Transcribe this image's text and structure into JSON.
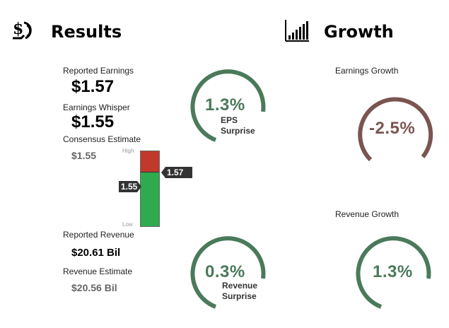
{
  "results": {
    "icon": "money-hand-icon",
    "title": "Results",
    "reported_earnings_label": "Reported Earnings",
    "reported_earnings_value": "$1.57",
    "earnings_whisper_label": "Earnings Whisper",
    "earnings_whisper_value": "$1.55",
    "consensus_label": "Consensus Estimate",
    "consensus_value": "$1.55",
    "range_bar": {
      "high_label": "High",
      "low_label": "Low",
      "actual_tag": "1.57",
      "whisper_tag": "1.55",
      "actual_color": "#c0392b",
      "base_color": "#2eaa4f"
    },
    "eps_gauge": {
      "value": "1.3%",
      "line1": "EPS",
      "line2": "Surprise",
      "color": "#4a7a5a"
    },
    "reported_revenue_label": "Reported Revenue",
    "reported_revenue_value": "$20.61 Bil",
    "revenue_estimate_label": "Revenue Estimate",
    "revenue_estimate_value": "$20.56 Bil",
    "revenue_gauge": {
      "value": "0.3%",
      "line1": "Revenue",
      "line2": "Surprise",
      "color": "#4a7a5a"
    }
  },
  "growth": {
    "icon": "bar-chart-icon",
    "title": "Growth",
    "earnings_growth_label": "Earnings Growth",
    "earnings_growth_value": "-2.5%",
    "earnings_growth_color": "#7a5550",
    "revenue_growth_label": "Revenue Growth",
    "revenue_growth_value": "1.3%",
    "revenue_growth_color": "#4a7a5a"
  }
}
